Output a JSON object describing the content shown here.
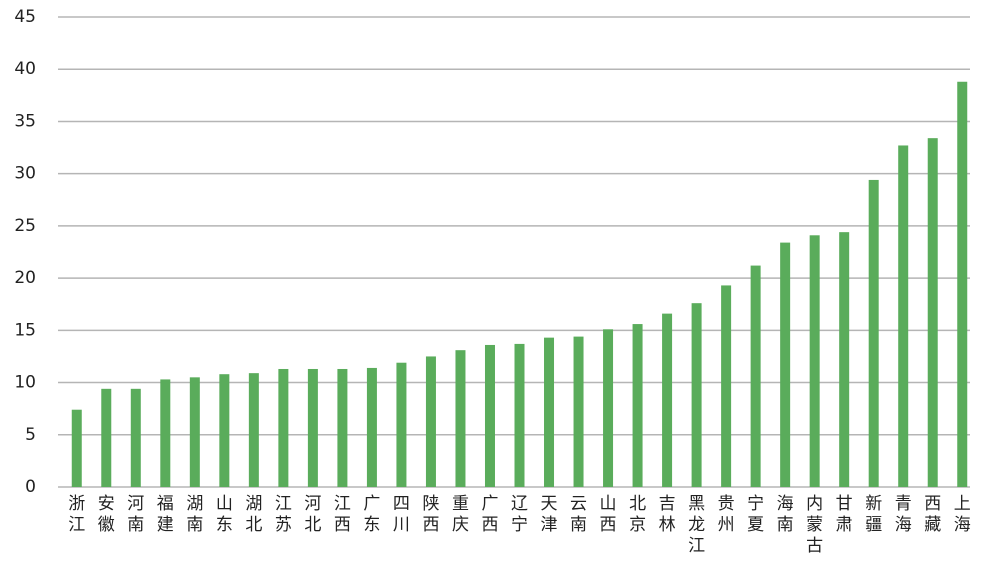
{
  "chart_data": {
    "type": "bar",
    "categories": [
      "浙江",
      "安徽",
      "河南",
      "福建",
      "湖南",
      "山东",
      "湖北",
      "江苏",
      "河北",
      "江西",
      "广东",
      "四川",
      "陕西",
      "重庆",
      "广西",
      "辽宁",
      "天津",
      "云南",
      "山西",
      "北京",
      "吉林",
      "黑龙江",
      "贵州",
      "宁夏",
      "海南",
      "内蒙古",
      "甘肃",
      "新疆",
      "青海",
      "西藏",
      "上海"
    ],
    "values": [
      7.4,
      9.4,
      9.4,
      10.3,
      10.5,
      10.8,
      10.9,
      11.3,
      11.3,
      11.3,
      11.4,
      11.9,
      12.5,
      13.1,
      13.6,
      13.7,
      14.3,
      14.4,
      15.1,
      15.6,
      16.6,
      17.6,
      19.3,
      21.2,
      23.4,
      24.1,
      24.4,
      29.4,
      32.7,
      33.4,
      38.8
    ],
    "color": "#5aac5b",
    "ylim": [
      0,
      45
    ],
    "yticks": [
      0,
      5,
      10,
      15,
      20,
      25,
      30,
      35,
      40,
      45
    ],
    "grid": true
  }
}
